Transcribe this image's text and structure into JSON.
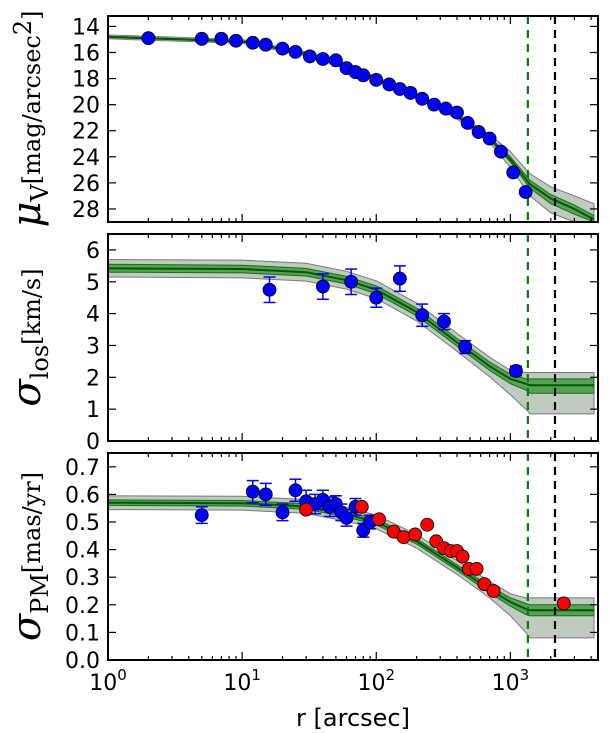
{
  "chart_data": [
    {
      "type": "scatter",
      "panel": "surface-brightness",
      "ylabel_symbol": "μ",
      "ylabel_sub": "V",
      "ylabel_unit": "[mag/arcsec",
      "ylabel_unit_sup": "2",
      "ylabel_unit_close": "]",
      "xscale": "log",
      "xlim": [
        1,
        4500
      ],
      "ylim": [
        29,
        13.2
      ],
      "y_inverted": true,
      "yticks": [
        14,
        16,
        18,
        20,
        22,
        24,
        26,
        28
      ],
      "grid": false,
      "series": [
        {
          "color": "#0000ff",
          "marker": "circle",
          "x": [
            2,
            5,
            7,
            9,
            12,
            15,
            20,
            25,
            32,
            40,
            50,
            60,
            70,
            80,
            100,
            125,
            150,
            180,
            220,
            270,
            330,
            400,
            480,
            580,
            700,
            850,
            1050,
            1300
          ],
          "y": [
            14.9,
            14.95,
            14.95,
            15.1,
            15.25,
            15.4,
            15.7,
            15.95,
            16.3,
            16.5,
            16.6,
            17.2,
            17.5,
            17.75,
            18.1,
            18.45,
            18.8,
            19.1,
            19.55,
            20.0,
            20.3,
            20.6,
            21.4,
            22.1,
            22.6,
            23.6,
            25.2,
            26.7
          ]
        }
      ],
      "model_band": {
        "color": "#008000",
        "x": [
          1,
          10,
          30,
          60,
          100,
          200,
          400,
          700,
          1000,
          1400,
          2000,
          3000,
          4200
        ],
        "median": [
          14.8,
          15.15,
          16.1,
          17.1,
          18.0,
          19.35,
          20.9,
          22.6,
          24.2,
          26.1,
          27.2,
          28.0,
          28.8
        ],
        "inner_lo": [
          14.75,
          15.1,
          16.05,
          17.05,
          17.95,
          19.3,
          20.85,
          22.5,
          24.0,
          25.8,
          26.9,
          27.7,
          28.5
        ],
        "inner_hi": [
          14.85,
          15.2,
          16.15,
          17.15,
          18.05,
          19.4,
          20.95,
          22.7,
          24.4,
          26.4,
          27.6,
          28.4,
          29.0
        ],
        "outer_lo": [
          14.65,
          15.0,
          15.95,
          16.95,
          17.85,
          19.2,
          20.7,
          22.3,
          23.6,
          25.3,
          26.3,
          27.0,
          27.6
        ],
        "outer_hi": [
          14.95,
          15.3,
          16.25,
          17.25,
          18.15,
          19.5,
          21.1,
          22.9,
          24.8,
          27.0,
          28.3,
          29.0,
          29.0
        ]
      },
      "vlines": [
        {
          "x": 1350,
          "color": "#008000",
          "style": "dashed"
        },
        {
          "x": 2150,
          "color": "#000000",
          "style": "dashed"
        }
      ]
    },
    {
      "type": "scatter",
      "panel": "los-dispersion",
      "ylabel_symbol": "σ",
      "ylabel_sub": "los",
      "ylabel_unit": "[km/s]",
      "xscale": "log",
      "xlim": [
        1,
        4500
      ],
      "ylim": [
        0,
        6.5
      ],
      "yticks": [
        0,
        1,
        2,
        3,
        4,
        5,
        6
      ],
      "grid": false,
      "series": [
        {
          "color": "#0000ff",
          "marker": "circle",
          "x": [
            16,
            40,
            65,
            100,
            150,
            220,
            320,
            460,
            1100
          ],
          "y": [
            4.75,
            4.85,
            5.0,
            4.5,
            5.1,
            3.95,
            3.75,
            2.95,
            2.2
          ],
          "yerr": [
            0.4,
            0.4,
            0.4,
            0.3,
            0.4,
            0.35,
            0.25,
            0.2,
            0.15
          ]
        }
      ],
      "model_band": {
        "color": "#008000",
        "x": [
          1,
          10,
          30,
          60,
          100,
          200,
          400,
          700,
          1000,
          1300,
          1400,
          2000,
          4200
        ],
        "median": [
          5.42,
          5.4,
          5.3,
          5.05,
          4.75,
          4.05,
          3.1,
          2.35,
          1.95,
          1.8,
          1.75,
          1.75,
          1.75
        ],
        "inner_lo": [
          5.3,
          5.28,
          5.18,
          4.93,
          4.63,
          3.93,
          2.98,
          2.22,
          1.8,
          1.6,
          1.5,
          1.5,
          1.5
        ],
        "inner_hi": [
          5.55,
          5.52,
          5.42,
          5.17,
          4.87,
          4.17,
          3.22,
          2.48,
          2.1,
          1.95,
          1.95,
          1.95,
          1.95
        ],
        "outer_lo": [
          5.15,
          5.12,
          5.02,
          4.77,
          4.47,
          3.77,
          2.82,
          2.02,
          1.45,
          1.0,
          0.85,
          0.85,
          0.85
        ],
        "outer_hi": [
          5.7,
          5.68,
          5.58,
          5.33,
          5.03,
          4.33,
          3.38,
          2.63,
          2.22,
          2.15,
          2.15,
          2.15,
          2.15
        ]
      },
      "vlines": [
        {
          "x": 1350,
          "color": "#008000",
          "style": "dashed"
        },
        {
          "x": 2150,
          "color": "#000000",
          "style": "dashed"
        }
      ]
    },
    {
      "type": "scatter",
      "panel": "proper-motion-dispersion",
      "ylabel_symbol": "σ",
      "ylabel_sub": "PM",
      "ylabel_unit": "[mas/yr]",
      "xlabel": "r [arcsec]",
      "xscale": "log",
      "xlim": [
        1,
        4500
      ],
      "xticks": [
        {
          "v": 1,
          "b": "10",
          "e": "0"
        },
        {
          "v": 10,
          "b": "10",
          "e": "1"
        },
        {
          "v": 100,
          "b": "10",
          "e": "2"
        },
        {
          "v": 1000,
          "b": "10",
          "e": "3"
        }
      ],
      "ylim": [
        0,
        0.75
      ],
      "yticks": [
        "0.0",
        "0.1",
        "0.2",
        "0.3",
        "0.4",
        "0.5",
        "0.6",
        "0.7"
      ],
      "grid": false,
      "series": [
        {
          "color": "#0000ff",
          "marker": "circle",
          "x": [
            5,
            12,
            15,
            20,
            25,
            30,
            35,
            40,
            45,
            50,
            55,
            60,
            70,
            80,
            90
          ],
          "y": [
            0.525,
            0.61,
            0.6,
            0.535,
            0.615,
            0.575,
            0.565,
            0.58,
            0.555,
            0.565,
            0.535,
            0.515,
            0.555,
            0.47,
            0.5
          ],
          "yerr": [
            0.03,
            0.04,
            0.04,
            0.03,
            0.04,
            0.04,
            0.035,
            0.035,
            0.035,
            0.03,
            0.03,
            0.03,
            0.03,
            0.025,
            0.025
          ]
        },
        {
          "color": "#ff0000",
          "marker": "circle",
          "x": [
            30,
            78,
            105,
            135,
            160,
            195,
            240,
            280,
            320,
            360,
            400,
            440,
            490,
            560,
            640,
            750,
            2500
          ],
          "y": [
            0.545,
            0.555,
            0.51,
            0.465,
            0.445,
            0.455,
            0.49,
            0.43,
            0.405,
            0.395,
            0.395,
            0.375,
            0.33,
            0.33,
            0.275,
            0.25,
            0.205
          ]
        }
      ],
      "model_band": {
        "color": "#008000",
        "x": [
          1,
          10,
          30,
          60,
          100,
          200,
          400,
          700,
          1000,
          1300,
          1400,
          2000,
          4200
        ],
        "median": [
          0.57,
          0.568,
          0.556,
          0.528,
          0.5,
          0.43,
          0.335,
          0.255,
          0.21,
          0.185,
          0.18,
          0.18,
          0.18
        ],
        "inner_lo": [
          0.56,
          0.558,
          0.546,
          0.518,
          0.49,
          0.42,
          0.325,
          0.243,
          0.195,
          0.165,
          0.16,
          0.16,
          0.16
        ],
        "inner_hi": [
          0.58,
          0.578,
          0.566,
          0.538,
          0.51,
          0.44,
          0.345,
          0.267,
          0.225,
          0.205,
          0.2,
          0.2,
          0.2
        ],
        "outer_lo": [
          0.545,
          0.543,
          0.531,
          0.503,
          0.475,
          0.405,
          0.31,
          0.225,
          0.16,
          0.1,
          0.08,
          0.08,
          0.08
        ],
        "outer_hi": [
          0.595,
          0.593,
          0.581,
          0.553,
          0.525,
          0.455,
          0.36,
          0.285,
          0.24,
          0.225,
          0.225,
          0.225,
          0.225
        ]
      },
      "vlines": [
        {
          "x": 1350,
          "color": "#008000",
          "style": "dashed"
        },
        {
          "x": 2150,
          "color": "#000000",
          "style": "dashed"
        }
      ]
    }
  ]
}
